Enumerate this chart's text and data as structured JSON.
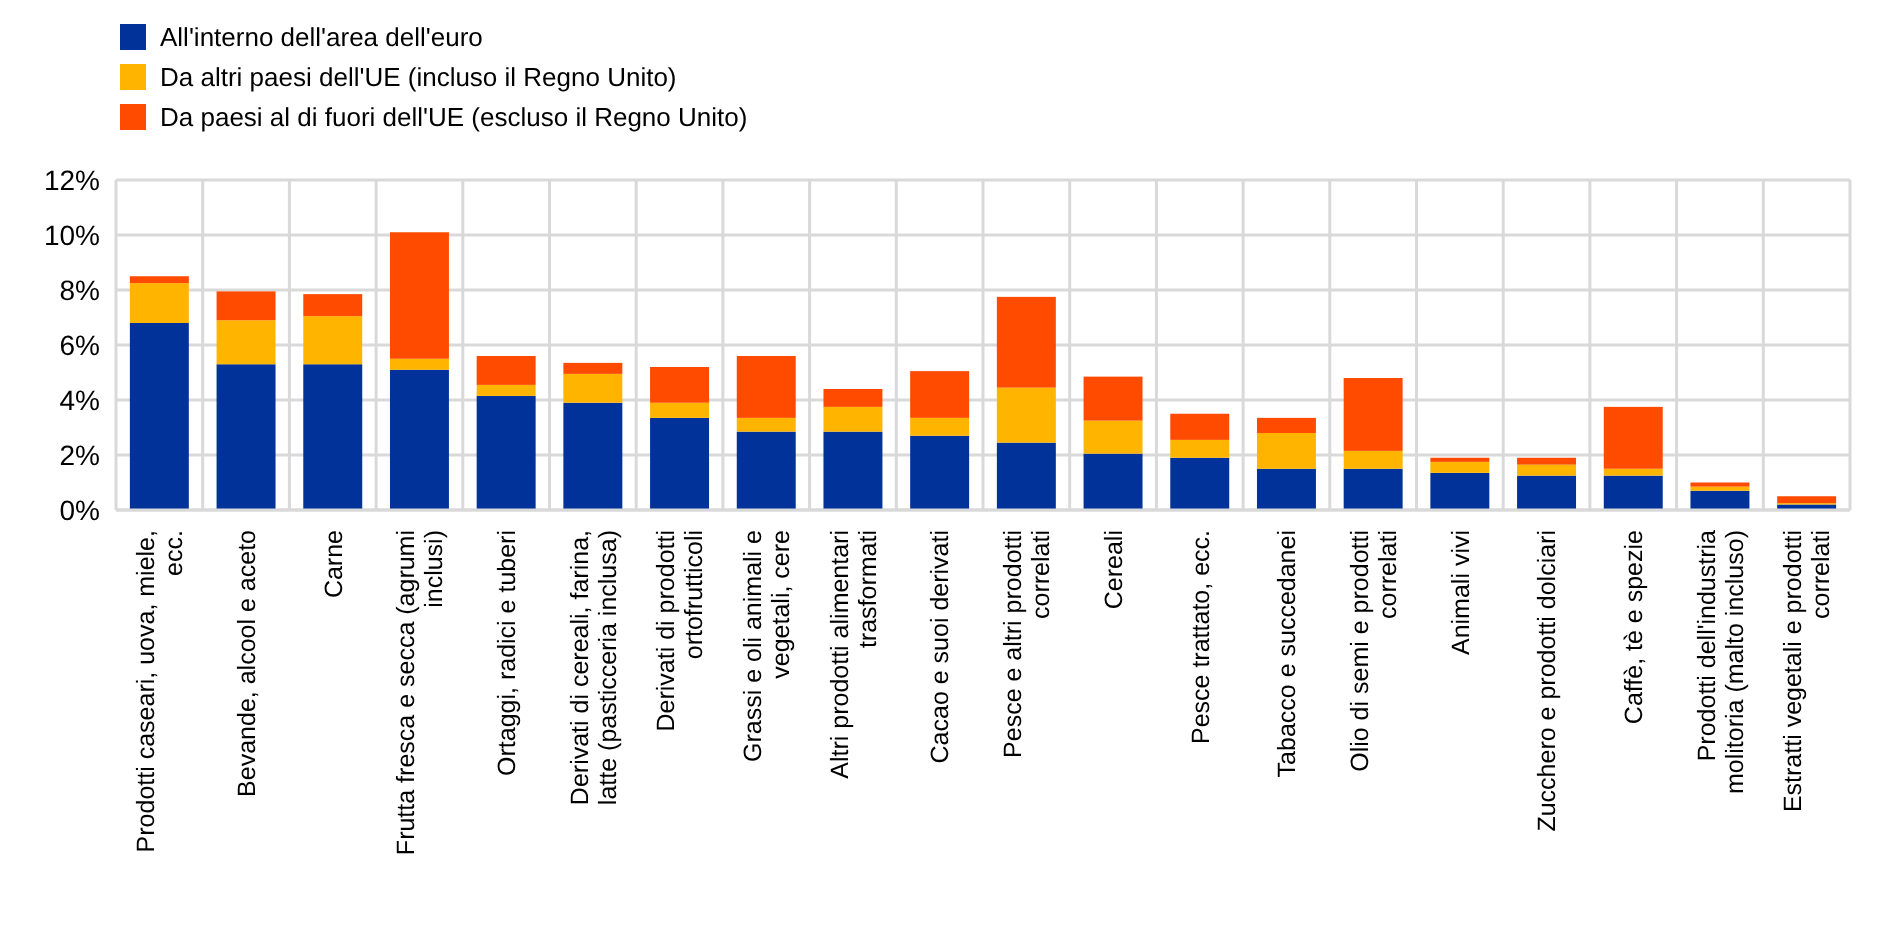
{
  "chart_data": {
    "type": "bar",
    "stacked": true,
    "categories": [
      "Prodotti caseari, uova, miele, ecc.",
      "Bevande, alcool e aceto",
      "Carne",
      "Frutta fresca e secca (agrumi inclusi)",
      "Ortaggi, radici e tuberi",
      "Derivati di cereali, farina, latte (pasticceria inclusa)",
      "Derivati di prodotti ortofrutticoli",
      "Grassi e oli animali e vegetali, cere",
      "Altri prodotti alimentari trasformati",
      "Cacao e suoi derivati",
      "Pesce e altri prodotti correlati",
      "Cereali",
      "Pesce trattato, ecc.",
      "Tabacco e succedanei",
      "Olio di semi e prodotti correlati",
      "Animali vivi",
      "Zucchero e prodotti dolciari",
      "Caffè, tè e spezie",
      "Prodotti dell'industria molitoria (malto incluso)",
      "Estratti vegetali e prodotti correlati"
    ],
    "series": [
      {
        "name": "All'interno dell'area dell'euro",
        "color": "#003299",
        "values": [
          6.8,
          5.3,
          5.3,
          5.1,
          4.15,
          3.9,
          3.35,
          2.85,
          2.85,
          2.7,
          2.45,
          2.05,
          1.9,
          1.5,
          1.5,
          1.35,
          1.25,
          1.25,
          0.7,
          0.2
        ]
      },
      {
        "name": "Da altri paesi dell'UE (incluso il Regno Unito)",
        "color": "#ffb400",
        "values": [
          1.45,
          1.6,
          1.75,
          0.4,
          0.4,
          1.05,
          0.55,
          0.5,
          0.9,
          0.65,
          2.0,
          1.2,
          0.65,
          1.3,
          0.65,
          0.4,
          0.4,
          0.25,
          0.15,
          0.05
        ]
      },
      {
        "name": "Da paesi al di fuori dell'UE (escluso il Regno Unito)",
        "color": "#ff4b00",
        "values": [
          0.25,
          1.05,
          0.8,
          4.6,
          1.05,
          0.4,
          1.3,
          2.25,
          0.65,
          1.7,
          3.3,
          1.6,
          0.95,
          0.55,
          2.65,
          0.15,
          0.25,
          2.25,
          0.15,
          0.25
        ]
      }
    ],
    "ylim": [
      0,
      12
    ],
    "yticks": [
      {
        "value": 0,
        "label": "0%"
      },
      {
        "value": 2,
        "label": "2%"
      },
      {
        "value": 4,
        "label": "4%"
      },
      {
        "value": 6,
        "label": "6%"
      },
      {
        "value": 8,
        "label": "8%"
      },
      {
        "value": 10,
        "label": "10%"
      },
      {
        "value": 12,
        "label": "12%"
      }
    ],
    "grid": true,
    "legend": "top left"
  }
}
